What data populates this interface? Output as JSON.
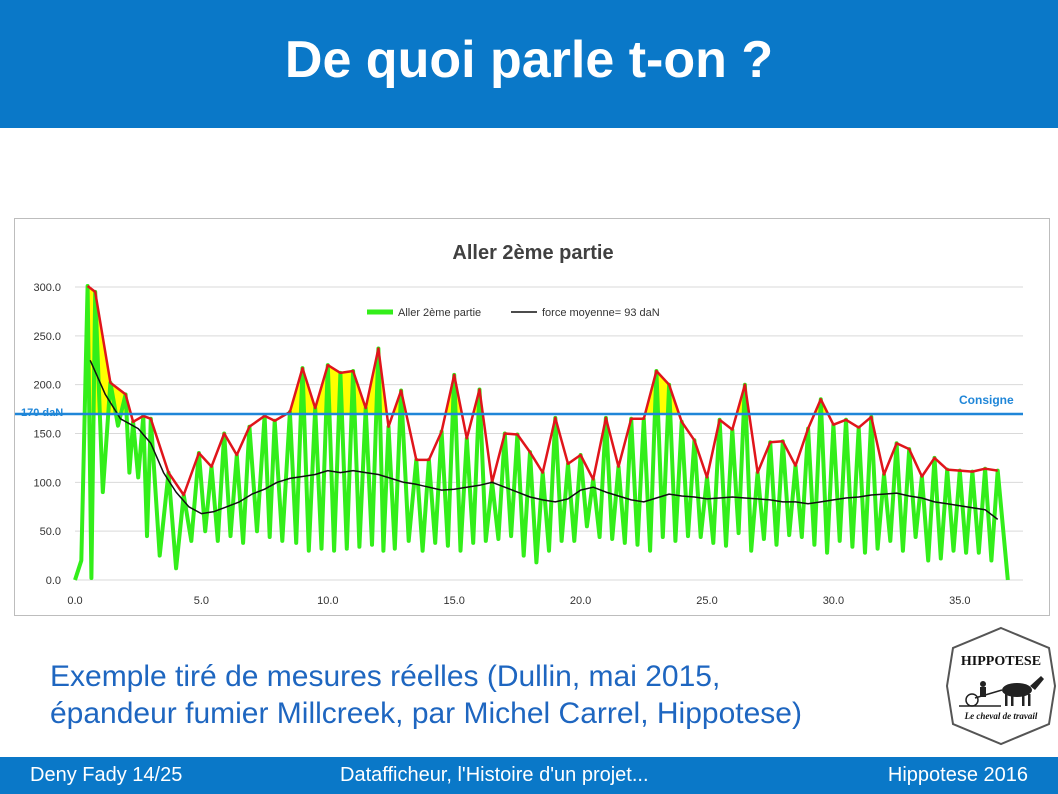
{
  "slide": {
    "title": "De quoi parle t-on ?",
    "caption_line1": "Exemple tiré de mesures réelles (Dullin, mai 2015,",
    "caption_line2": "épandeur fumier Millcreek, par Michel Carrel, Hippotese)"
  },
  "footer": {
    "left": "Deny Fady 14/25",
    "center": "Datafficheur, l'Histoire d'un projet...",
    "right": "Hippotese 2016"
  },
  "logo": {
    "name": "HIPPOTESE",
    "tagline": "Le cheval de travail"
  },
  "colors": {
    "header_bg": "#0a78c8",
    "caption": "#1e66c0",
    "measure": "#33ee1a",
    "mean": "#111111",
    "consigne": "#1f86d8",
    "peaks": "#e0151b",
    "excess_fill": "#ffff00"
  },
  "chart_data": {
    "type": "line",
    "title": "Aller 2ème partie",
    "xlim": [
      0,
      37.5
    ],
    "ylim": [
      0,
      300
    ],
    "x_ticks": [
      "0.0",
      "5.0",
      "10.0",
      "15.0",
      "20.0",
      "25.0",
      "30.0",
      "35.0"
    ],
    "y_ticks": [
      "0.0",
      "50.0",
      "100.0",
      "150.0",
      "200.0",
      "250.0",
      "300.0"
    ],
    "grid": true,
    "legend_position": "top-center",
    "legend": [
      "Aller 2ème partie",
      "force moyenne= 93 daN"
    ],
    "consigne": {
      "value": 170,
      "label_left": "170 daN",
      "label_right": "Consigne"
    },
    "peaks": {
      "x": [
        0.5,
        0.8,
        1.4,
        2.0,
        2.3,
        2.7,
        3.0,
        3.7,
        4.3,
        4.9,
        5.4,
        5.9,
        6.4,
        6.9,
        7.5,
        7.9,
        8.5,
        9.0,
        9.5,
        10.0,
        10.5,
        11.0,
        11.5,
        12.0,
        12.4,
        12.9,
        13.5,
        14.0,
        14.5,
        15.0,
        15.5,
        16.0,
        16.5,
        17.0,
        17.5,
        18.0,
        18.5,
        19.0,
        19.5,
        20.0,
        20.5,
        21.0,
        21.5,
        22.0,
        22.5,
        23.0,
        23.5,
        24.0,
        24.5,
        25.0,
        25.5,
        26.0,
        26.5,
        27.0,
        27.5,
        28.0,
        28.5,
        29.0,
        29.5,
        30.0,
        30.5,
        31.0,
        31.5,
        32.0,
        32.5,
        33.0,
        33.5,
        34.0,
        34.5,
        35.0,
        35.5,
        36.0,
        36.5
      ],
      "y": [
        301,
        295,
        202,
        190,
        162,
        168,
        165,
        110,
        87,
        130,
        116,
        150,
        128,
        157,
        168,
        163,
        172,
        217,
        176,
        220,
        212,
        214,
        176,
        237,
        157,
        194,
        123,
        123,
        152,
        210,
        145,
        195,
        100,
        150,
        149,
        131,
        110,
        166,
        119,
        128,
        103,
        166,
        116,
        165,
        165,
        214,
        200,
        162,
        143,
        105,
        164,
        154,
        200,
        110,
        141,
        142,
        117,
        155,
        185,
        159,
        164,
        156,
        167,
        108,
        140,
        134,
        106,
        125,
        113,
        112,
        111,
        114,
        112
      ]
    },
    "mean_force": {
      "x": [
        0.6,
        1.2,
        1.8,
        2.5,
        3.0,
        3.5,
        4.0,
        4.5,
        5.0,
        5.5,
        6.0,
        6.5,
        7.0,
        7.5,
        8.0,
        8.5,
        9.0,
        9.5,
        10.0,
        10.5,
        11.0,
        11.5,
        12.0,
        12.5,
        13.0,
        13.5,
        14.0,
        14.5,
        15.0,
        15.5,
        16.0,
        16.5,
        17.0,
        17.5,
        18.0,
        18.5,
        19.0,
        19.5,
        20.0,
        20.5,
        21.0,
        21.5,
        22.0,
        22.5,
        23.0,
        23.5,
        24.0,
        24.5,
        25.0,
        25.5,
        26.0,
        26.5,
        27.0,
        27.5,
        28.0,
        28.5,
        29.0,
        29.5,
        30.0,
        30.5,
        31.0,
        31.5,
        32.0,
        32.5,
        33.0,
        33.5,
        34.0,
        34.5,
        35.0,
        35.5,
        36.0,
        36.5
      ],
      "y": [
        225,
        190,
        165,
        155,
        140,
        110,
        90,
        75,
        68,
        70,
        75,
        80,
        88,
        93,
        100,
        104,
        106,
        108,
        112,
        110,
        112,
        110,
        108,
        104,
        100,
        98,
        95,
        92,
        93,
        95,
        97,
        100,
        95,
        90,
        85,
        82,
        80,
        83,
        92,
        95,
        90,
        86,
        82,
        80,
        84,
        88,
        86,
        85,
        83,
        84,
        85,
        84,
        83,
        82,
        80,
        80,
        78,
        80,
        82,
        84,
        85,
        87,
        88,
        89,
        86,
        84,
        80,
        78,
        76,
        74,
        72,
        62
      ]
    },
    "oscillation_series": "Aller 2ème partie",
    "oscillation_minima": [
      2,
      90,
      158,
      110,
      105,
      45,
      25,
      12,
      40,
      50,
      40,
      45,
      38,
      50,
      44,
      40,
      38,
      30,
      32,
      30,
      32,
      34,
      36,
      30,
      32,
      40,
      30,
      38,
      35,
      30,
      38,
      40,
      42,
      45,
      25,
      18,
      30,
      40,
      40,
      55,
      44,
      42,
      38,
      36,
      30,
      44,
      40,
      45,
      44,
      38,
      35,
      48,
      30,
      42,
      36,
      46,
      44,
      36,
      28,
      40,
      34,
      28,
      32,
      40,
      30,
      44,
      20,
      22,
      30,
      28,
      28,
      20,
      0
    ]
  }
}
